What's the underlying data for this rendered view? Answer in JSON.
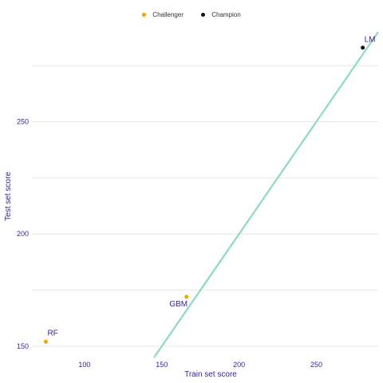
{
  "chart_data": {
    "type": "scatter",
    "title": "",
    "xlabel": "Train set score",
    "ylabel": "Test set score",
    "xlim": [
      66,
      290
    ],
    "ylim": [
      145,
      290
    ],
    "x_ticks": [
      100,
      150,
      200,
      250
    ],
    "y_ticks": [
      150,
      200,
      250
    ],
    "grid": "horizontal",
    "legend_position": "top",
    "legend": [
      {
        "name": "Challenger",
        "color": "#f0a500"
      },
      {
        "name": "Champion",
        "color": "#111111"
      }
    ],
    "points": [
      {
        "label": "RF",
        "x": 75,
        "y": 152,
        "group": "Challenger",
        "color": "#f0a500"
      },
      {
        "label": "GBM",
        "x": 166,
        "y": 172,
        "group": "Challenger",
        "color": "#f0a500"
      },
      {
        "label": "LM",
        "x": 280,
        "y": 283,
        "group": "Champion",
        "color": "#111111"
      }
    ],
    "reference_line": {
      "slope": 1,
      "intercept": 0,
      "color": "#8bdcbe"
    }
  }
}
